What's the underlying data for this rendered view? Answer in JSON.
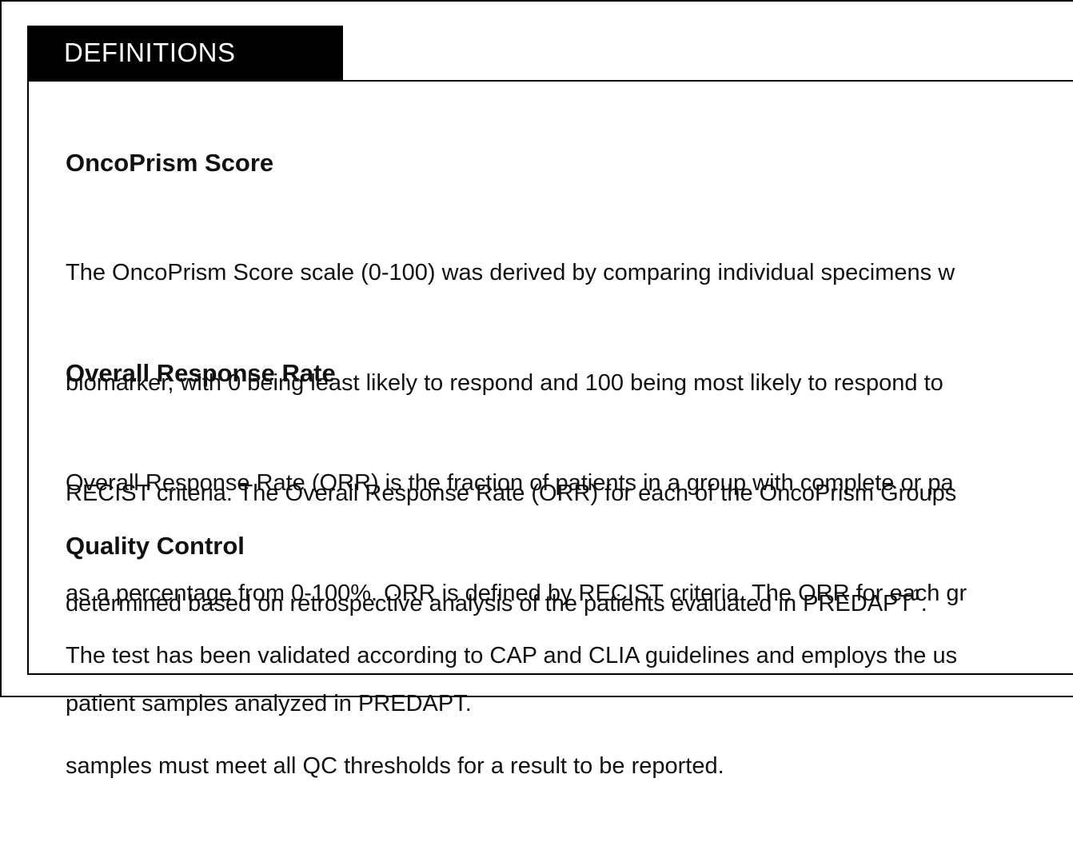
{
  "tab": {
    "label": "DEFINITIONS"
  },
  "sections": [
    {
      "title": "OncoPrism Score",
      "lines": [
        "The OncoPrism Score scale (0-100) was derived by comparing individual specimens w",
        "biomarker, with 0 being least likely to respond and 100 being most likely to respond to",
        "RECIST criteria. The Overall Response Rate (ORR) for each of the OncoPrism Groups",
        "determined based on retrospective analysis of the patients evaluated in PREDAPT"
      ],
      "superscript": "1",
      "trailing": "."
    },
    {
      "title": "Overall Response Rate",
      "lines": [
        "Overall Response Rate (ORR) is the fraction of patients in a group with complete or pa",
        "as a percentage from 0-100%. ORR is defined by RECIST criteria. The ORR for each gr",
        "patient samples analyzed in PREDAPT."
      ]
    },
    {
      "title": "Quality Control",
      "lines": [
        "The test has been validated according to CAP and CLIA guidelines and employs the us",
        "samples must meet all QC thresholds for a result to be reported."
      ]
    }
  ]
}
